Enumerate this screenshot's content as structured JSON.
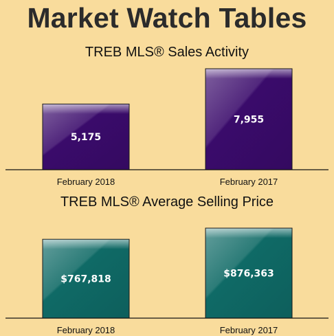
{
  "page": {
    "title": "Market Watch Tables"
  },
  "chart_data": [
    {
      "type": "bar",
      "title": "TREB MLS® Sales Activity",
      "categories": [
        "February 2018",
        "February 2017"
      ],
      "values": [
        5175,
        7955
      ],
      "data_labels": [
        "5,175",
        "7,955"
      ],
      "ylim": [
        0,
        7955
      ],
      "bar_color": "#3a0b6b",
      "grid": false,
      "legend": "none"
    },
    {
      "type": "bar",
      "title": "TREB MLS® Average Selling Price",
      "categories": [
        "February 2018",
        "February 2017"
      ],
      "values": [
        767818,
        876363
      ],
      "data_labels": [
        "$767,818",
        "$876,363"
      ],
      "ylim": [
        0,
        876363
      ],
      "bar_color": "#0f6a66",
      "grid": false,
      "legend": "none"
    }
  ]
}
